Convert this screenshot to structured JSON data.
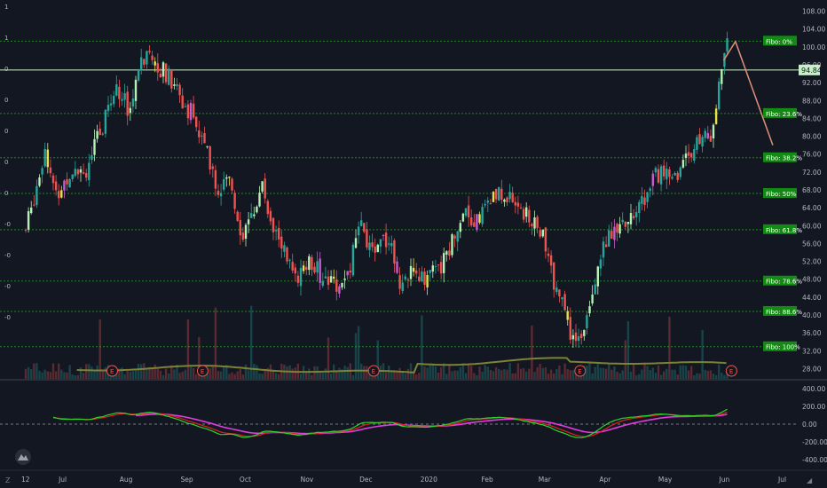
{
  "colors": {
    "background": "#131722",
    "up": "#26a69a",
    "down": "#ef5350",
    "fib_line": "#1c8a1c",
    "fib_label_bg": "#138a13",
    "price_label_bg": "#c8f0c8",
    "ma_volume": "#7d8234",
    "macd_line": "#2bd62b",
    "signal_line": "#e0211e",
    "histogram_line": "#e13ce0",
    "projection": "#e0907a"
  },
  "chart_data": [
    {
      "type": "candlestick",
      "x_labels": [
        "12",
        "Jul",
        "Aug",
        "Sep",
        "Oct",
        "Nov",
        "Dec",
        "2020",
        "Feb",
        "Mar",
        "Apr",
        "May",
        "Jun",
        "Jul"
      ],
      "y_ticks": [
        "108.00",
        "104.00",
        "100.00",
        "96.00",
        "92.00",
        "88.00",
        "84.00",
        "80.00",
        "76.00",
        "72.00",
        "68.00",
        "64.00",
        "60.00",
        "56.00",
        "52.00",
        "48.00",
        "44.00",
        "40.00",
        "36.00",
        "32.00",
        "28.00"
      ],
      "left_axis_labels": [
        "1",
        "1",
        "0",
        "0",
        "0",
        "0",
        "0",
        "-0",
        "-0",
        "-0",
        "-0"
      ],
      "ylim": [
        25.5,
        110.5
      ],
      "current_price": "94.84",
      "fibonacci": [
        {
          "label": "Fibo:  0%",
          "price": 101.3
        },
        {
          "label": "Fibo: 23.6%",
          "price": 85.1
        },
        {
          "label": "Fibo: 38.2%",
          "price": 75.2
        },
        {
          "label": "Fibo:  50%",
          "price": 67.2
        },
        {
          "label": "Fibo: 61.8%",
          "price": 59.1
        },
        {
          "label": "Fibo: 78.6%",
          "price": 47.6
        },
        {
          "label": "Fibo: 88.6%",
          "price": 40.8
        },
        {
          "label": "Fibo: 100%",
          "price": 32.9
        }
      ],
      "price_path": [
        [
          "2019-06-12",
          59
        ],
        [
          "2019-06-17",
          68
        ],
        [
          "2019-06-22",
          78
        ],
        [
          "2019-06-27",
          66
        ],
        [
          "2019-07-02",
          70
        ],
        [
          "2019-07-07",
          74
        ],
        [
          "2019-07-12",
          72
        ],
        [
          "2019-07-22",
          83
        ],
        [
          "2019-07-28",
          92
        ],
        [
          "2019-08-03",
          86
        ],
        [
          "2019-08-08",
          94
        ],
        [
          "2019-08-14",
          100
        ],
        [
          "2019-08-20",
          95
        ],
        [
          "2019-08-26",
          92
        ],
        [
          "2019-09-01",
          87
        ],
        [
          "2019-09-05",
          85
        ],
        [
          "2019-09-12",
          76
        ],
        [
          "2019-09-18",
          68
        ],
        [
          "2019-09-24",
          70
        ],
        [
          "2019-09-30",
          58
        ],
        [
          "2019-10-05",
          62
        ],
        [
          "2019-10-10",
          69
        ],
        [
          "2019-10-16",
          60
        ],
        [
          "2019-10-22",
          54
        ],
        [
          "2019-10-28",
          47
        ],
        [
          "2019-11-03",
          52
        ],
        [
          "2019-11-09",
          49
        ],
        [
          "2019-11-15",
          48
        ],
        [
          "2019-11-20",
          46
        ],
        [
          "2019-11-25",
          53
        ],
        [
          "2019-11-29",
          60
        ],
        [
          "2019-12-04",
          54
        ],
        [
          "2019-12-09",
          58
        ],
        [
          "2019-12-14",
          57
        ],
        [
          "2019-12-19",
          48
        ],
        [
          "2019-12-25",
          49
        ],
        [
          "2020-01-03",
          49
        ],
        [
          "2020-01-09",
          50
        ],
        [
          "2020-01-15",
          57
        ],
        [
          "2020-01-21",
          64
        ],
        [
          "2020-01-27",
          61
        ],
        [
          "2020-02-02",
          65
        ],
        [
          "2020-02-08",
          67
        ],
        [
          "2020-02-14",
          66
        ],
        [
          "2020-02-19",
          64
        ],
        [
          "2020-02-24",
          60
        ],
        [
          "2020-02-29",
          59
        ],
        [
          "2020-03-04",
          51
        ],
        [
          "2020-03-09",
          45
        ],
        [
          "2020-03-14",
          37
        ],
        [
          "2020-03-18",
          33
        ],
        [
          "2020-03-22",
          38
        ],
        [
          "2020-03-27",
          48
        ],
        [
          "2020-04-02",
          57
        ],
        [
          "2020-04-08",
          58
        ],
        [
          "2020-04-14",
          61
        ],
        [
          "2020-04-20",
          65
        ],
        [
          "2020-04-26",
          70
        ],
        [
          "2020-05-01",
          73
        ],
        [
          "2020-05-07",
          70
        ],
        [
          "2020-05-13",
          76
        ],
        [
          "2020-05-19",
          78
        ],
        [
          "2020-05-25",
          80
        ],
        [
          "2020-05-28",
          86
        ],
        [
          "2020-05-31",
          96
        ],
        [
          "2020-06-03",
          100
        ]
      ],
      "projection": [
        [
          "2020-06-01",
          97
        ],
        [
          "2020-06-07",
          101.2
        ],
        [
          "2020-06-26",
          78
        ]
      ],
      "earnings_markers": [
        "E",
        "E",
        "E",
        "E",
        "E"
      ],
      "earnings_dates": [
        "2019-07-26",
        "2019-09-10",
        "2019-12-06",
        "2020-03-20",
        "2020-06-05"
      ]
    },
    {
      "type": "line",
      "name": "macd",
      "y_ticks": [
        "400.00",
        "200.00",
        "0.00",
        "-200.00",
        "-400.00"
      ],
      "ylim": [
        -500,
        480
      ],
      "zero_line": 0
    }
  ]
}
